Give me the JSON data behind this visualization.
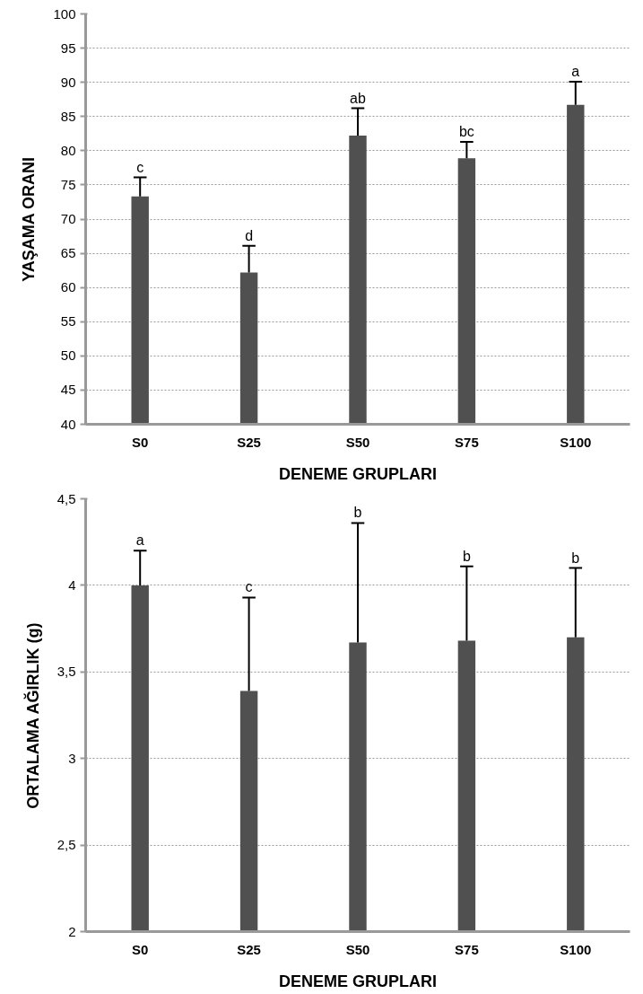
{
  "chart_data": [
    {
      "type": "bar",
      "categories": [
        "S0",
        "S25",
        "S50",
        "S75",
        "S100"
      ],
      "xlabel": "DENEME GRUPLARI",
      "ylabel": "YAŞAMA ORANI",
      "color": "#505050",
      "values": [
        73.3,
        62.2,
        82.2,
        78.9,
        86.7
      ],
      "errors": [
        [
          73.3,
          76.1
        ],
        [
          62.2,
          66.1
        ],
        [
          82.2,
          86.2
        ],
        [
          78.9,
          81.3
        ],
        [
          86.7,
          90.1
        ]
      ],
      "ylim": [
        40,
        100
      ],
      "yticks": [
        40,
        45,
        50,
        55,
        60,
        65,
        70,
        75,
        80,
        85,
        90,
        95,
        100
      ],
      "grid": "y",
      "annotations": [
        {
          "text": "c",
          "x": "S0",
          "y": 76.1
        },
        {
          "text": "d",
          "x": "S25",
          "y": 66.1
        },
        {
          "text": "ab",
          "x": "S50",
          "y": 86.2
        },
        {
          "text": "bc",
          "x": "S75",
          "y": 81.3
        },
        {
          "text": "a",
          "x": "S100",
          "y": 90.1
        }
      ]
    },
    {
      "type": "bar",
      "categories": [
        "S0",
        "S25",
        "S50",
        "S75",
        "S100"
      ],
      "xlabel": "DENEME GRUPLARI",
      "ylabel": "ORTALAMA AĞIRLIK (g)",
      "color": "#505050",
      "values": [
        4.0,
        3.39,
        3.67,
        3.68,
        3.7
      ],
      "errors": [
        [
          4.0,
          4.2
        ],
        [
          3.39,
          3.93
        ],
        [
          3.67,
          4.36
        ],
        [
          3.68,
          4.11
        ],
        [
          3.7,
          4.1
        ]
      ],
      "ylim": [
        2,
        4.5
      ],
      "yticks": [
        2,
        {
          "value": 2.5,
          "label": "2,5"
        },
        3,
        {
          "value": 3.5,
          "label": "3,5"
        },
        4,
        {
          "value": 4.5,
          "label": "4,5"
        }
      ],
      "grid": "y",
      "annotations": [
        {
          "text": "a",
          "x": "S0",
          "y": 4.2
        },
        {
          "text": "c",
          "x": "S25",
          "y": 3.93
        },
        {
          "text": "b",
          "x": "S50",
          "y": 4.36
        },
        {
          "text": "b",
          "x": "S75",
          "y": 4.11
        },
        {
          "text": "b",
          "x": "S100",
          "y": 4.1
        }
      ]
    }
  ]
}
